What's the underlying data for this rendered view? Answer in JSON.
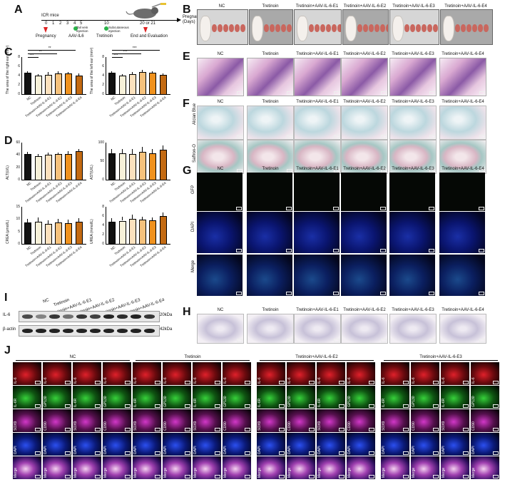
{
  "panels": {
    "A": "A",
    "B": "B",
    "C": "C",
    "D": "D",
    "E": "E",
    "F": "F",
    "G": "G",
    "H": "H",
    "I": "I",
    "J": "J"
  },
  "timeline": {
    "strain": "ICR mice",
    "ticks": [
      "0",
      "1",
      "2",
      "3",
      "4",
      "5",
      "10",
      "20 or 21"
    ],
    "axis_label": "Pregnancy time (Days)",
    "events": {
      "pregnancy": "Pregnancy",
      "aav": "AAV-IL6",
      "tail_vein": "Tail vein injection",
      "tretinoin": "Tretinoin",
      "subcutaneous": "Subcutaneous injection",
      "end": "End and Evaluation"
    }
  },
  "groups": [
    "NC",
    "Tretinoin",
    "Tretinoin+AAV-IL-6-E1",
    "Tretinoin+AAV-IL-6-E2",
    "Tretinoin+AAV-IL-6-E3",
    "Tretinoin+AAV-IL-6-E4"
  ],
  "stain_labels": {
    "alcian": "Alcian Blue",
    "safranin": "Saffron-O",
    "gfp": "GFP",
    "dapi": "DAPI",
    "merge": "Merge"
  },
  "western": {
    "lanes": [
      "NC",
      "Tretinoin",
      "Tretinoin+AAV-IL-6-E1",
      "Tretinoin+AAV-IL-6-E2",
      "Tretinoin+AAV-IL-6-E3",
      "Tretinoin+AAV-IL-6-E4"
    ],
    "rows": [
      {
        "name": "IL-6",
        "kda": "20kDa"
      },
      {
        "name": "β-actin",
        "kda": "42kDa"
      }
    ]
  },
  "panel_j": {
    "groups": [
      "NC",
      "Tretinoin",
      "Tretinoin+AAV-IL-6-E2",
      "Tretinoin+AAV-IL-6-E3"
    ],
    "row_labels": [
      [
        "IL-6",
        "IL-6",
        "IL-6",
        "IL-6"
      ],
      [
        "IL-6R",
        "GP130",
        "IL-6R",
        "GP130"
      ],
      [
        "SOX9",
        "CD90",
        "SOX9",
        "CD90"
      ],
      [
        "DAPI",
        "DAPI",
        "DAPI",
        "DAPI"
      ],
      [
        "Merge",
        "Merge",
        "Merge",
        "Merge"
      ]
    ]
  },
  "chart_data": [
    {
      "type": "bar",
      "title": "",
      "ylabel": "The area of the right ear (mm²)",
      "ylim": [
        0,
        8
      ],
      "yticks": [
        "0",
        "2",
        "4",
        "6",
        "8"
      ],
      "categories": [
        "NC",
        "Tretinoin",
        "Tretinoin+AAV-IL-6-E1",
        "Tretinoin+AAV-IL-6-E2",
        "Tretinoin+AAV-IL-6-E3",
        "Tretinoin+AAV-IL-6-E4"
      ],
      "values": [
        4.6,
        4.0,
        4.2,
        4.5,
        4.5,
        4.0
      ],
      "errors": [
        0.4,
        0.3,
        0.5,
        0.5,
        0.3,
        0.4
      ],
      "significance": [
        "***",
        "**",
        "**"
      ]
    },
    {
      "type": "bar",
      "title": "",
      "ylabel": "The area of the left ear (mm²)",
      "ylim": [
        0,
        8
      ],
      "yticks": [
        "0",
        "2",
        "4",
        "6",
        "8"
      ],
      "categories": [
        "NC",
        "Tretinoin",
        "Tretinoin+AAV-IL-6-E1",
        "Tretinoin+AAV-IL-6-E2",
        "Tretinoin+AAV-IL-6-E3",
        "Tretinoin+AAV-IL-6-E4"
      ],
      "values": [
        4.6,
        4.0,
        4.3,
        4.7,
        4.6,
        4.1
      ],
      "errors": [
        0.4,
        0.3,
        0.4,
        0.6,
        0.4,
        0.4
      ],
      "significance": [
        "***",
        "***",
        "***"
      ]
    },
    {
      "type": "bar",
      "title": "",
      "ylabel": "ALT(U/L)",
      "ylim": [
        0,
        60
      ],
      "yticks": [
        "0",
        "20",
        "40",
        "60"
      ],
      "categories": [
        "NC",
        "Tretinoin",
        "Tretinoin+AAV-IL-6-E1",
        "Tretinoin+AAV-IL-6-E2",
        "Tretinoin+AAV-IL-6-E3",
        "Tretinoin+AAV-IL-6-E4"
      ],
      "values": [
        41,
        38,
        40,
        41,
        42,
        46
      ],
      "errors": [
        4,
        3,
        4,
        3,
        4,
        4
      ],
      "significance": []
    },
    {
      "type": "bar",
      "title": "",
      "ylabel": "AST(U/L)",
      "ylim": [
        0,
        100
      ],
      "yticks": [
        "0",
        "50",
        "100"
      ],
      "categories": [
        "NC",
        "Tretinoin",
        "Tretinoin+AAV-IL-6-E1",
        "Tretinoin+AAV-IL-6-E2",
        "Tretinoin+AAV-IL-6-E3",
        "Tretinoin+AAV-IL-6-E4"
      ],
      "values": [
        72,
        71,
        70,
        75,
        72,
        80
      ],
      "errors": [
        10,
        12,
        13,
        14,
        11,
        12
      ],
      "significance": []
    },
    {
      "type": "bar",
      "title": "",
      "ylabel": "CREA (μmol/L)",
      "ylim": [
        0,
        15
      ],
      "yticks": [
        "0",
        "5",
        "10",
        "15"
      ],
      "categories": [
        "NC",
        "Tretinoin",
        "Tretinoin+AAV-IL-6-E1",
        "Tretinoin+AAV-IL-6-E2",
        "Tretinoin+AAV-IL-6-E3",
        "Tretinoin+AAV-IL-6-E4"
      ],
      "values": [
        8.7,
        8.8,
        8.2,
        8.7,
        8.3,
        9.0
      ],
      "errors": [
        1.5,
        2.0,
        1.2,
        1.5,
        1.6,
        1.3
      ],
      "significance": []
    },
    {
      "type": "bar",
      "title": "",
      "ylabel": "UREA (mmol/L)",
      "ylim": [
        0,
        8
      ],
      "yticks": [
        "0",
        "2",
        "4",
        "6",
        "8"
      ],
      "categories": [
        "NC",
        "Tretinoin",
        "Tretinoin+AAV-IL-6-E1",
        "Tretinoin+AAV-IL-6-E2",
        "Tretinoin+AAV-IL-6-E3",
        "Tretinoin+AAV-IL-6-E4"
      ],
      "values": [
        4.7,
        5.0,
        5.4,
        5.2,
        5.1,
        6.0
      ],
      "errors": [
        0.9,
        0.8,
        0.9,
        0.7,
        0.6,
        0.8
      ],
      "significance": []
    }
  ],
  "colors": {
    "nc": "#111111",
    "tre": "#f7f1d9",
    "e1": "#fbe1bd",
    "e2": "#f6c27c",
    "e3": "#f0921e",
    "e4": "#c36a12"
  }
}
